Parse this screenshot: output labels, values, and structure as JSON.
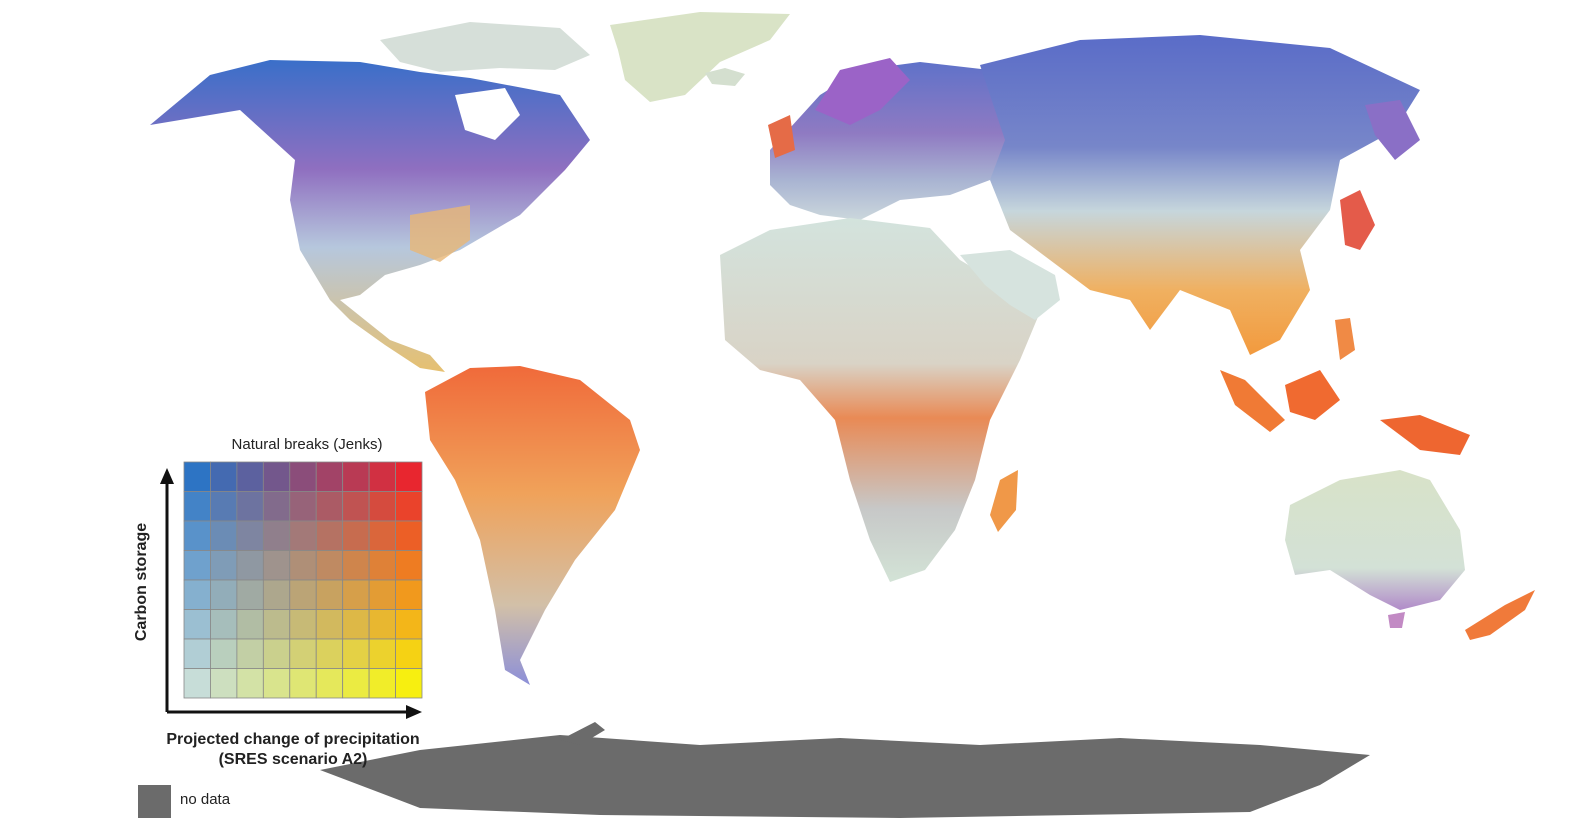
{
  "legend": {
    "title": "Natural breaks (Jenks)",
    "y_axis_label": "Carbon storage",
    "x_axis_label_line1": "Projected change of precipitation",
    "x_axis_label_line2": "(SRES scenario A2)",
    "grid": {
      "rows": 8,
      "cols": 9,
      "corner_colors": {
        "top_left": "#2d74c4",
        "top_right": "#e8262f",
        "bottom_left": "#c7ddd8",
        "bottom_right": "#f7ef10"
      }
    },
    "no_data_label": "no data",
    "no_data_color": "#6b6b6b"
  },
  "colors": {
    "ocean": "#ffffff",
    "land_default": "#cfe0dc",
    "no_data": "#6b6b6b",
    "grid_line": "#888888"
  }
}
